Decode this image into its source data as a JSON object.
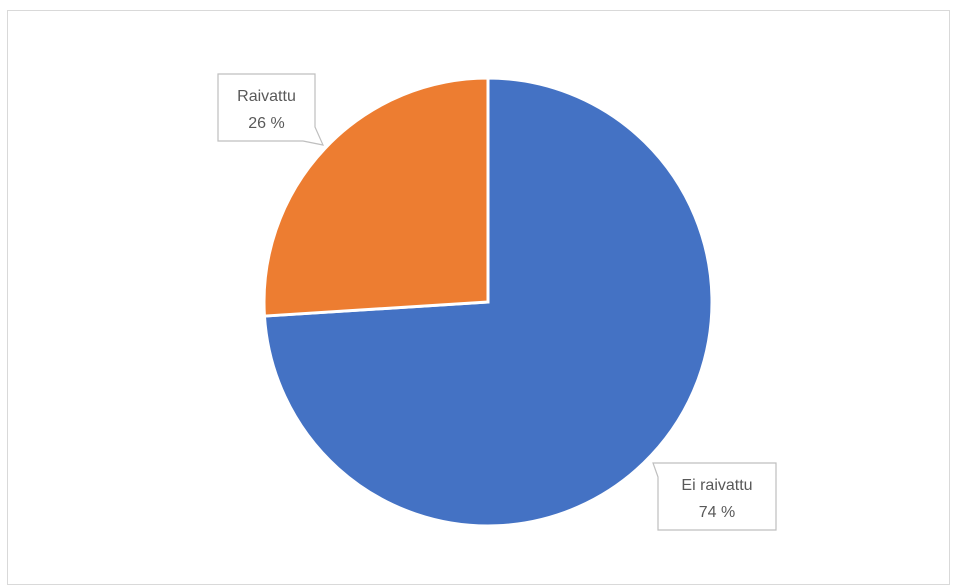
{
  "chart_data": {
    "type": "pie",
    "title": "",
    "slices": [
      {
        "label": "Ei raivattu",
        "value": 74,
        "value_label": "74 %",
        "color": "#4472C4"
      },
      {
        "label": "Raivattu",
        "value": 26,
        "value_label": "26 %",
        "color": "#ED7D31"
      }
    ],
    "legend": "none",
    "data_labels": "category and percentage in callouts"
  }
}
